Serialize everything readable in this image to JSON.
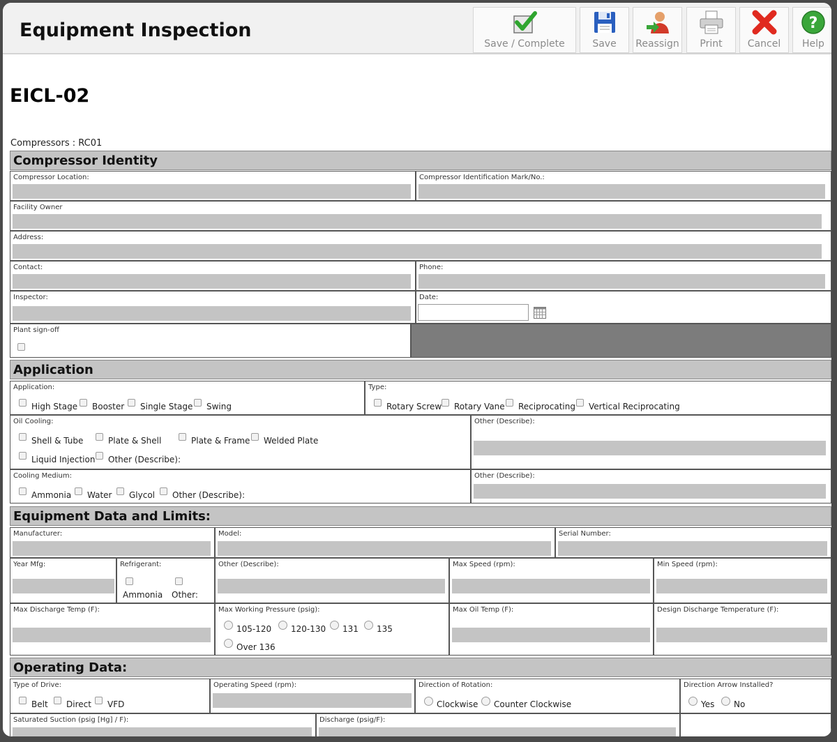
{
  "header": {
    "title": "Equipment Inspection",
    "buttons": [
      {
        "label": "Save / Complete",
        "icon": "checkmark-icon"
      },
      {
        "label": "Save",
        "icon": "floppy-disk-icon"
      },
      {
        "label": "Reassign",
        "icon": "user-reassign-icon"
      },
      {
        "label": "Print",
        "icon": "printer-icon"
      },
      {
        "label": "Cancel",
        "icon": "red-x-icon"
      },
      {
        "label": "Help",
        "icon": "help-icon"
      }
    ]
  },
  "doc": {
    "title": "EICL-02",
    "compressor_label": "Compressors : RC01"
  },
  "compressor_identity": {
    "heading": "Compressor Identity",
    "location": "Compressor Location:",
    "id_mark": "Compressor Identification Mark/No.:",
    "facility_owner": "Facility Owner",
    "address": "Address:",
    "contact": "Contact:",
    "phone": "Phone:",
    "inspector": "Inspector:",
    "date": "Date:",
    "plant_signoff": "Plant sign-off"
  },
  "application": {
    "heading": "Application",
    "app_label": "Application:",
    "app_options": [
      "High Stage",
      "Booster",
      "Single Stage",
      "Swing"
    ],
    "type_label": "Type:",
    "type_options": [
      "Rotary Screw",
      "Rotary Vane",
      "Reciprocating",
      "Vertical Reciprocating"
    ],
    "oil_label": "Oil Cooling:",
    "oil_options": [
      "Shell & Tube",
      "Plate & Shell",
      "Plate & Frame",
      "Welded Plate",
      "Liquid Injection",
      "Other (Describe):"
    ],
    "oil_other": "Other (Describe):",
    "medium_label": "Cooling Medium:",
    "medium_options": [
      "Ammonia",
      "Water",
      "Glycol",
      "Other (Describe):"
    ],
    "medium_other": "Other (Describe):"
  },
  "equipment": {
    "heading": "Equipment Data and Limits:",
    "manufacturer": "Manufacturer:",
    "model": "Model:",
    "serial": "Serial Number:",
    "year": "Year Mfg:",
    "refrigerant": "Refrigerant:",
    "refrigerant_options": [
      "Ammonia",
      "Other:"
    ],
    "other": "Other (Describe):",
    "max_speed": "Max Speed (rpm):",
    "min_speed": "Min Speed (rpm):",
    "max_discharge": "Max Discharge Temp (F):",
    "max_pressure": "Max Working Pressure (psig):",
    "pressure_options": [
      "105-120",
      "120-130",
      "131",
      "135",
      "Over 136"
    ],
    "max_oil": "Max Oil Temp (F):",
    "design_discharge": "Design Discharge Temperature (F):"
  },
  "operating": {
    "heading": "Operating Data:",
    "drive": "Type of Drive:",
    "drive_options": [
      "Belt",
      "Direct",
      "VFD"
    ],
    "speed": "Operating Speed (rpm):",
    "rotation": "Direction of Rotation:",
    "rotation_options": [
      "Clockwise",
      "Counter Clockwise"
    ],
    "arrow": "Direction Arrow Installed?",
    "arrow_options": [
      "Yes",
      "No"
    ],
    "suction": "Saturated Suction (psig [Hg] / F):",
    "discharge": "Discharge (psig/F):"
  }
}
